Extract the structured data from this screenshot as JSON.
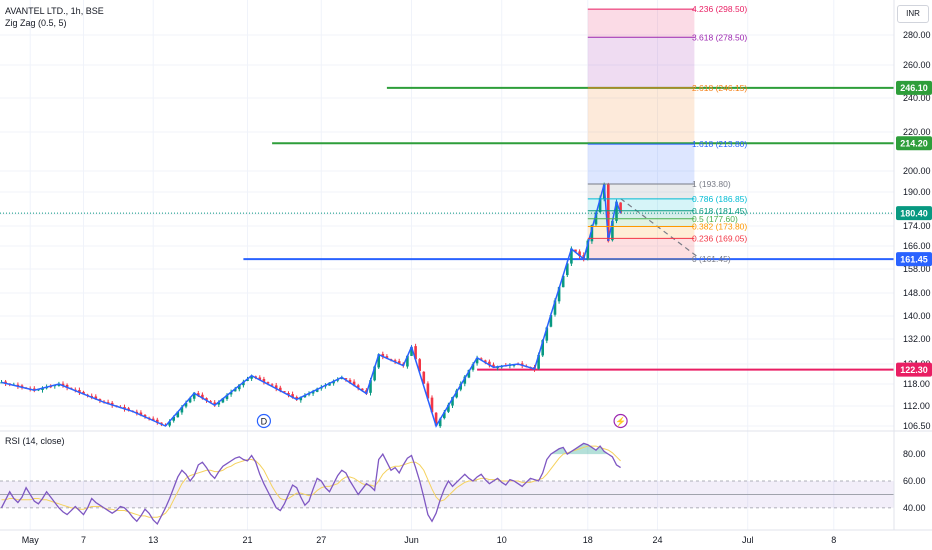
{
  "header": {
    "title": "AVANTEL LTD., 1h, BSE",
    "indicator": "Zig Zag (0.5, 5)",
    "rsi_label": "RSI (14, close)",
    "currency": "INR"
  },
  "colors": {
    "up": "#089981",
    "down": "#f23645",
    "zigzag": "#2962ff",
    "level_green": "#2e9e3a",
    "level_blue": "#2962ff",
    "level_pink": "#e91e63",
    "rsi": "#7e57c2",
    "rsi_ma": "#f5d25e",
    "grid": "#f0f3fa",
    "axis_text": "#131722"
  },
  "price_axis": {
    "min": 105,
    "max": 305,
    "ticks": [
      106.5,
      112.0,
      118.0,
      124.0,
      132.0,
      140.0,
      148.0,
      158.0,
      166.0,
      174.0,
      180.0,
      190.0,
      200.0,
      220.0,
      240.0,
      260.0,
      280.0
    ]
  },
  "time_axis": {
    "labels": [
      {
        "text": "May",
        "idx": 7
      },
      {
        "text": "7",
        "idx": 20
      },
      {
        "text": "13",
        "idx": 37
      },
      {
        "text": "21",
        "idx": 60
      },
      {
        "text": "27",
        "idx": 78
      },
      {
        "text": "Jun",
        "idx": 100
      },
      {
        "text": "10",
        "idx": 122
      },
      {
        "text": "18",
        "idx": 143
      },
      {
        "text": "24",
        "idx": 160
      },
      {
        "text": "Jul",
        "idx": 182
      },
      {
        "text": "8",
        "idx": 203
      }
    ]
  },
  "price_tags": [
    {
      "text": "246.10",
      "value": 246.1,
      "color": "#2e9e3a"
    },
    {
      "text": "214.20",
      "value": 214.2,
      "color": "#2e9e3a"
    },
    {
      "text": "180.40",
      "value": 180.4,
      "color": "#089981"
    },
    {
      "text": "161.45",
      "value": 161.45,
      "color": "#2962ff"
    },
    {
      "text": "122.30",
      "value": 122.3,
      "color": "#e91e63"
    }
  ],
  "horizontal_levels": [
    {
      "value": 246.1,
      "color": "#2e9e3a",
      "from_idx": 94
    },
    {
      "value": 214.2,
      "color": "#2e9e3a",
      "from_idx": 66
    },
    {
      "value": 161.45,
      "color": "#2962ff",
      "from_idx": 59
    },
    {
      "value": 122.3,
      "color": "#e91e63",
      "from_idx": 116
    }
  ],
  "fib": {
    "from_idx": 143,
    "to_idx": 169,
    "levels": [
      {
        "label": "4.236 (298.50)",
        "value": 298.5,
        "color": "#e91e63"
      },
      {
        "label": "3.618 (278.50)",
        "value": 278.5,
        "color": "#9c27b0"
      },
      {
        "label": "2.618 (246.15)",
        "value": 246.15,
        "color": "#f57f17"
      },
      {
        "label": "1.618 (213.80)",
        "value": 213.8,
        "color": "#2962ff"
      },
      {
        "label": "1 (193.80)",
        "value": 193.8,
        "color": "#787b86"
      },
      {
        "label": "0.786 (186.85)",
        "value": 186.85,
        "color": "#00bcd4"
      },
      {
        "label": "0.618 (181.45)",
        "value": 181.45,
        "color": "#089981"
      },
      {
        "label": "0.5 (177.60)",
        "value": 177.6,
        "color": "#4caf50"
      },
      {
        "label": "0.382 (173.80)",
        "value": 173.8,
        "color": "#ff9800"
      },
      {
        "label": "0.236 (169.05)",
        "value": 169.05,
        "color": "#f23645"
      },
      {
        "label": "0 (161.45)",
        "value": 161.45,
        "color": "#787b86"
      }
    ]
  },
  "markers": [
    {
      "label": "D",
      "idx": 64,
      "color": "#2962ff"
    },
    {
      "label": "⚡",
      "idx": 151,
      "color": "#9c27b0"
    }
  ],
  "zigzag": [
    {
      "i": 0,
      "v": 118.5
    },
    {
      "i": 8,
      "v": 116.3
    },
    {
      "i": 14,
      "v": 118
    },
    {
      "i": 25,
      "v": 113
    },
    {
      "i": 32,
      "v": 110.5
    },
    {
      "i": 40,
      "v": 106.5
    },
    {
      "i": 47,
      "v": 115.5
    },
    {
      "i": 52,
      "v": 112.2
    },
    {
      "i": 61,
      "v": 120.5
    },
    {
      "i": 72,
      "v": 113.8
    },
    {
      "i": 83,
      "v": 120
    },
    {
      "i": 89,
      "v": 115.4
    },
    {
      "i": 92,
      "v": 127
    },
    {
      "i": 98,
      "v": 123.5
    },
    {
      "i": 100,
      "v": 129.5
    },
    {
      "i": 106,
      "v": 106.5
    },
    {
      "i": 116,
      "v": 126
    },
    {
      "i": 120,
      "v": 123
    },
    {
      "i": 126,
      "v": 124
    },
    {
      "i": 130,
      "v": 122.5
    },
    {
      "i": 134,
      "v": 140.5
    },
    {
      "i": 139,
      "v": 165
    },
    {
      "i": 142,
      "v": 161.5
    },
    {
      "i": 147,
      "v": 193.8
    },
    {
      "i": 148,
      "v": 168
    },
    {
      "i": 150,
      "v": 185.5
    },
    {
      "i": 151,
      "v": 180.4
    }
  ],
  "projection": [
    {
      "i": 151,
      "v": 187
    },
    {
      "i": 170,
      "v": 162
    }
  ],
  "rsi": {
    "min": 25,
    "max": 95,
    "ticks": [
      40,
      60,
      80
    ],
    "bands": [
      40,
      50,
      60
    ],
    "values": [
      40,
      46,
      52,
      47,
      44,
      48,
      55,
      50,
      45,
      43,
      47,
      52,
      48,
      44,
      40,
      37,
      35,
      38,
      41,
      38,
      35,
      40,
      47,
      44,
      42,
      40,
      38,
      36,
      38,
      41,
      40,
      37,
      33,
      30,
      34,
      39,
      36,
      31,
      28,
      34,
      40,
      47,
      55,
      63,
      68,
      65,
      60,
      64,
      72,
      74,
      70,
      65,
      62,
      67,
      71,
      73,
      75,
      77,
      78,
      76,
      75,
      79,
      74,
      65,
      58,
      52,
      46,
      40,
      38,
      43,
      50,
      57,
      55,
      48,
      42,
      45,
      54,
      62,
      60,
      55,
      52,
      58,
      64,
      68,
      66,
      60,
      55,
      50,
      54,
      58,
      56,
      53,
      76,
      80,
      74,
      68,
      70,
      66,
      72,
      77,
      79,
      70,
      60,
      48,
      35,
      30,
      36,
      46,
      54,
      60,
      56,
      59,
      62,
      65,
      62,
      60,
      63,
      65,
      61,
      58,
      60,
      62,
      59,
      57,
      61,
      60,
      58,
      56,
      59,
      62,
      61,
      60,
      66,
      76,
      80,
      82,
      84,
      85,
      80,
      82,
      84,
      86,
      88,
      87,
      85,
      83,
      86,
      82,
      80,
      78,
      72,
      70
    ]
  },
  "rsi_ma": {
    "values": [
      46,
      46,
      47,
      47,
      46,
      46,
      46,
      46,
      47,
      47,
      46,
      46,
      45,
      44,
      43,
      42,
      41,
      40,
      40,
      39,
      39,
      40,
      41,
      41,
      41,
      40,
      39,
      39,
      38,
      38,
      38,
      37,
      36,
      35,
      34,
      34,
      33,
      33,
      33,
      34,
      36,
      40,
      46,
      52,
      58,
      62,
      64,
      65,
      66,
      67,
      68,
      68,
      67,
      67,
      68,
      70,
      71,
      73,
      74,
      75,
      76,
      76,
      75,
      72,
      68,
      62,
      56,
      51,
      47,
      46,
      47,
      49,
      51,
      51,
      50,
      49,
      50,
      53,
      55,
      56,
      56,
      57,
      58,
      61,
      63,
      63,
      62,
      60,
      58,
      57,
      57,
      56,
      60,
      65,
      68,
      70,
      71,
      71,
      72,
      73,
      74,
      74,
      72,
      68,
      61,
      54,
      48,
      45,
      46,
      49,
      52,
      55,
      57,
      59,
      60,
      60,
      61,
      62,
      62,
      61,
      61,
      61,
      60,
      60,
      60,
      60,
      60,
      59,
      59,
      59,
      60,
      61,
      62,
      65,
      69,
      73,
      77,
      80,
      81,
      82,
      83,
      84,
      85,
      86,
      86,
      86,
      85,
      84,
      83,
      81,
      78,
      75
    ]
  }
}
